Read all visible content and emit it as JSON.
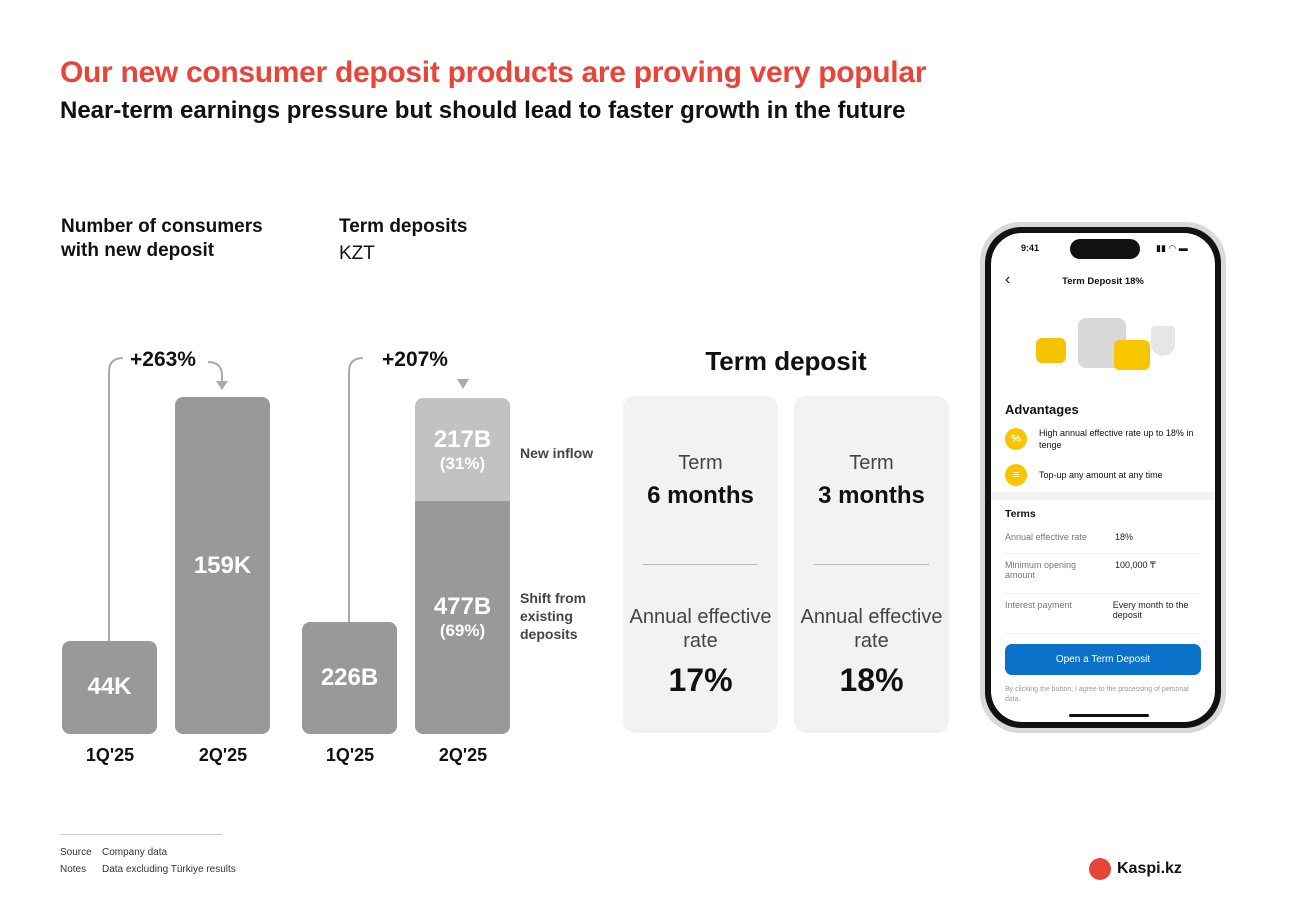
{
  "title": "Our new consumer deposit products are proving very popular",
  "subtitle": "Near-term earnings pressure but should lead to faster growth in the future",
  "chart_data": [
    {
      "type": "bar",
      "title": "Number of consumers with new deposit",
      "categories": [
        "1Q'25",
        "2Q'25"
      ],
      "values": [
        44,
        159
      ],
      "labels": [
        "44K",
        "159K"
      ],
      "unit": "K",
      "growth": "+263%"
    },
    {
      "type": "bar",
      "title": "Term deposits",
      "subtitle": "KZT",
      "categories": [
        "1Q'25",
        "2Q'25"
      ],
      "series": [
        {
          "name": "Shift from existing deposits",
          "values": [
            226,
            477
          ],
          "labels": [
            "226B",
            "477B"
          ],
          "shares": [
            "",
            "(69%)"
          ]
        },
        {
          "name": "New inflow",
          "values": [
            0,
            217
          ],
          "labels": [
            "",
            "217B"
          ],
          "shares": [
            "",
            "(31%)"
          ]
        }
      ],
      "unit": "B",
      "growth": "+207%"
    }
  ],
  "term_deposit": {
    "title": "Term deposit",
    "cards": [
      {
        "term_label": "Term",
        "term": "6 months",
        "rate_label": "Annual effective rate",
        "rate": "17%"
      },
      {
        "term_label": "Term",
        "term": "3 months",
        "rate_label": "Annual effective rate",
        "rate": "18%"
      }
    ]
  },
  "phone": {
    "time": "9:41",
    "header": "Term Deposit 18%",
    "advantages_title": "Advantages",
    "advantages": [
      "High annual effective rate up to 18% in tenge",
      "Top-up any amount at any time"
    ],
    "terms_title": "Terms",
    "terms": [
      {
        "k": "Annual effective rate",
        "v": "18%"
      },
      {
        "k": "Minimum opening amount",
        "v": "100,000 ₸"
      },
      {
        "k": "Interest payment",
        "v": "Every month to the deposit"
      }
    ],
    "button": "Open a Term Deposit",
    "disclaimer": "By clicking the button, I agree to the processing of personal data."
  },
  "footer": {
    "source_label": "Source",
    "source": "Company data",
    "notes_label": "Notes",
    "notes": "Data excluding Türkiye results",
    "logo": "Kaspi.kz"
  },
  "colors": {
    "accent": "#e8443a",
    "bar": "#999999",
    "bar_light": "#c2c2c2",
    "button": "#0a72c8"
  }
}
